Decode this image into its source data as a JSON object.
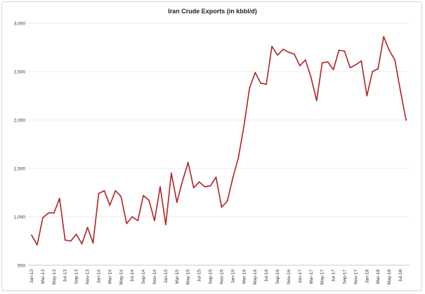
{
  "chart_data": {
    "type": "line",
    "title": "Iran Crude Exports (in kbbl/d)",
    "xlabel": "",
    "ylabel": "",
    "ylim": [
      500,
      3000
    ],
    "yticks": [
      500,
      1000,
      1500,
      2000,
      2500,
      3000
    ],
    "ytick_labels": [
      "500",
      "1,000",
      "1,500",
      "2,000",
      "2,500",
      "3,000"
    ],
    "grid": true,
    "line_color": "#b22222",
    "x": [
      "Jan-13",
      "Feb-13",
      "Mar-13",
      "Apr-13",
      "May-13",
      "Jun-13",
      "Jul-13",
      "Aug-13",
      "Sep-13",
      "Oct-13",
      "Nov-13",
      "Dec-13",
      "Jan-14",
      "Feb-14",
      "Mar-14",
      "Apr-14",
      "May-14",
      "Jun-14",
      "Jul-14",
      "Aug-14",
      "Sep-14",
      "Oct-14",
      "Nov-14",
      "Dec-14",
      "Jan-15",
      "Feb-15",
      "Mar-15",
      "Apr-15",
      "May-15",
      "Jun-15",
      "Jul-15",
      "Aug-15",
      "Sep-15",
      "Oct-15",
      "Nov-15",
      "Dec-15",
      "Jan-16",
      "Feb-16",
      "Mar-16",
      "Apr-16",
      "May-16",
      "Jun-16",
      "Jul-16",
      "Aug-16",
      "Sep-16",
      "Oct-16",
      "Nov-16",
      "Dec-16",
      "Jan-17",
      "Feb-17",
      "Mar-17",
      "Apr-17",
      "May-17",
      "Jun-17",
      "Jul-17",
      "Aug-17",
      "Sep-17",
      "Oct-17",
      "Nov-17",
      "Dec-17",
      "Jan-18",
      "Feb-18",
      "Mar-18",
      "Apr-18",
      "May-18",
      "Jun-18",
      "Jul-18",
      "Aug-18"
    ],
    "xtick_labels": [
      "Jan-13",
      "Mar-13",
      "May-13",
      "Jul-13",
      "Sep-13",
      "Nov-13",
      "Jan-14",
      "Mar-14",
      "May-14",
      "Jul-14",
      "Sep-14",
      "Nov-14",
      "Jan-15",
      "Mar-15",
      "May-15",
      "Jul-15",
      "Sep-15",
      "Nov-15",
      "Jan-16",
      "Mar-16",
      "May-16",
      "Jul-16",
      "Sep-16",
      "Nov-16",
      "Jan-17",
      "Mar-17",
      "May-17",
      "Jul-17",
      "Sep-17",
      "Nov-17",
      "Jan-18",
      "Mar-18",
      "May-18",
      "Jul-18"
    ],
    "series": [
      {
        "values": [
          810,
          710,
          990,
          1040,
          1040,
          1190,
          760,
          750,
          820,
          720,
          890,
          730,
          1240,
          1270,
          1120,
          1270,
          1210,
          930,
          1000,
          960,
          1220,
          1170,
          960,
          1310,
          920,
          1450,
          1150,
          1370,
          1560,
          1300,
          1360,
          1310,
          1320,
          1410,
          1100,
          1160,
          1400,
          1610,
          1940,
          2330,
          2490,
          2380,
          2370,
          2760,
          2670,
          2730,
          2700,
          2680,
          2560,
          2620,
          2440,
          2200,
          2590,
          2600,
          2520,
          2720,
          2710,
          2540,
          2570,
          2610,
          2250,
          2500,
          2530,
          2860,
          2720,
          2620,
          2300,
          2000
        ]
      }
    ]
  }
}
